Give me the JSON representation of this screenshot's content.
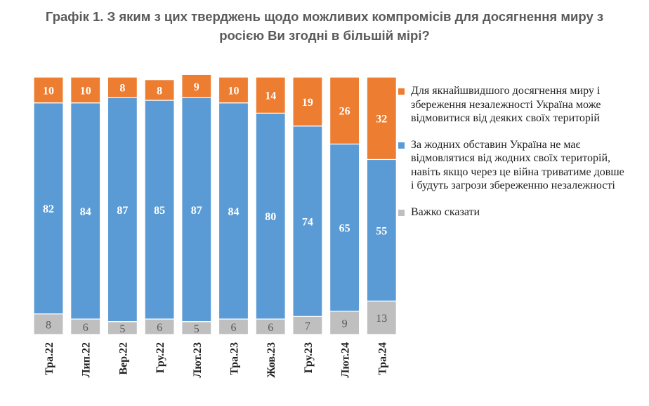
{
  "title_line1": "Графік 1. З яким з цих тверджень щодо можливих компромісів для досягнення миру з",
  "title_line2": "росією Ви згодні в більшій мірі?",
  "colors": {
    "concede": "#ED7D31",
    "never": "#5B9BD5",
    "hard": "#BFBFBF"
  },
  "legend": [
    {
      "label": "Для якнайшвидшого досягнення миру і збереження незалежності Україна може відмовитися від деяких своїх територій",
      "color": "#ED7D31"
    },
    {
      "label": "За жодних обставин Україна не має відмовлятися від жодних своїх територій, навіть якщо через це війна триватиме довше і будуть загрози збереженню незалежності",
      "color": "#5B9BD5"
    },
    {
      "label": "Важко сказати",
      "color": "#BFBFBF"
    }
  ],
  "chart_data": {
    "type": "bar",
    "stacked": true,
    "ylim": [
      0,
      100
    ],
    "categories": [
      "Тра.22",
      "Лип.22",
      "Вер.22",
      "Гру.22",
      "Лют.23",
      "Тра.23",
      "Жов.23",
      "Гру.23",
      "Лют.24",
      "Тра.24"
    ],
    "series": [
      {
        "name": "Важко сказати",
        "values": [
          8,
          6,
          5,
          6,
          5,
          6,
          6,
          7,
          9,
          13
        ],
        "color": "#BFBFBF"
      },
      {
        "name": "За жодних обставин Україна не має відмовлятися від жодних своїх територій, навіть якщо через це війна триватиме довше і будуть загрози збереженню незалежності",
        "values": [
          82,
          84,
          87,
          85,
          87,
          84,
          80,
          74,
          65,
          55
        ],
        "color": "#5B9BD5"
      },
      {
        "name": "Для якнайшвидшого досягнення миру і збереження незалежності Україна може відмовитися від деяких своїх територій",
        "values": [
          10,
          10,
          8,
          8,
          9,
          10,
          14,
          19,
          26,
          32
        ],
        "color": "#ED7D31"
      }
    ],
    "grid": false
  }
}
